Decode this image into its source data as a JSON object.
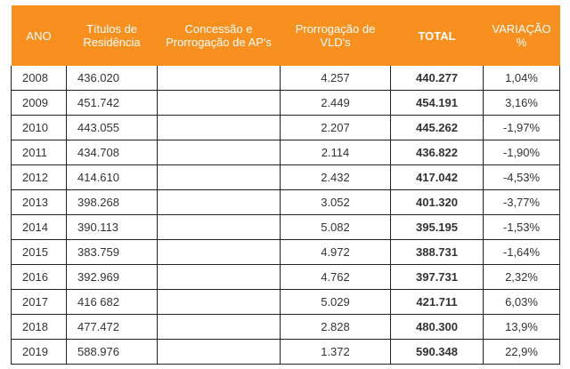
{
  "headers": {
    "ano": "ANO",
    "titulos": "Títulos de Residência",
    "concessao": "Concessão e Prorrogação de AP's",
    "prorrogacao": "Prorrogação de VLD's",
    "total": "TOTAL",
    "variacao": "VARIAÇÃO %"
  },
  "rows": [
    {
      "ano": "2008",
      "titulos": "436.020",
      "concessao": "",
      "prorrogacao": "4.257",
      "total": "440.277",
      "variacao": "1,04%"
    },
    {
      "ano": "2009",
      "titulos": "451.742",
      "concessao": "",
      "prorrogacao": "2.449",
      "total": "454.191",
      "variacao": "3,16%"
    },
    {
      "ano": "2010",
      "titulos": "443.055",
      "concessao": "",
      "prorrogacao": "2.207",
      "total": "445.262",
      "variacao": "-1,97%"
    },
    {
      "ano": "2011",
      "titulos": "434.708",
      "concessao": "",
      "prorrogacao": "2.114",
      "total": "436.822",
      "variacao": "-1,90%"
    },
    {
      "ano": "2012",
      "titulos": "414.610",
      "concessao": "",
      "prorrogacao": "2.432",
      "total": "417.042",
      "variacao": "-4,53%"
    },
    {
      "ano": "2013",
      "titulos": "398.268",
      "concessao": "",
      "prorrogacao": "3.052",
      "total": "401.320",
      "variacao": "-3,77%"
    },
    {
      "ano": "2014",
      "titulos": "390.113",
      "concessao": "",
      "prorrogacao": "5.082",
      "total": "395.195",
      "variacao": "-1,53%"
    },
    {
      "ano": "2015",
      "titulos": "383.759",
      "concessao": "",
      "prorrogacao": "4.972",
      "total": "388.731",
      "variacao": "-1,64%"
    },
    {
      "ano": "2016",
      "titulos": "392.969",
      "concessao": "",
      "prorrogacao": "4.762",
      "total": "397.731",
      "variacao": "2,32%"
    },
    {
      "ano": "2017",
      "titulos": "416 682",
      "concessao": "",
      "prorrogacao": "5.029",
      "total": "421.711",
      "variacao": "6,03%"
    },
    {
      "ano": "2018",
      "titulos": "477.472",
      "concessao": "",
      "prorrogacao": "2.828",
      "total": "480.300",
      "variacao": "13,9%"
    },
    {
      "ano": "2019",
      "titulos": "588.976",
      "concessao": "",
      "prorrogacao": "1.372",
      "total": "590.348",
      "variacao": "22,9%"
    }
  ],
  "colors": {
    "header_bg": "#f7901e",
    "header_text": "#ffffff",
    "border": "#222222"
  }
}
